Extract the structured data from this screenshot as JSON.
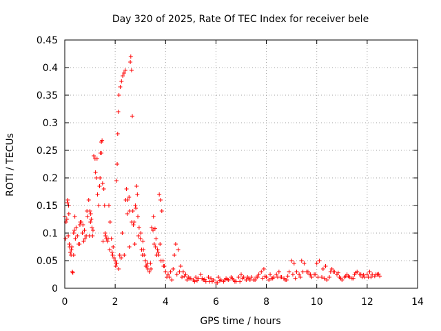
{
  "chart_data": {
    "type": "scatter",
    "title": "Day 320 of 2025, Rate Of TEC Index for receiver bele",
    "xlabel": "GPS time / hours",
    "ylabel": "ROTI / TECUs",
    "xlim": [
      0,
      14
    ],
    "ylim": [
      0,
      0.45
    ],
    "xticks": [
      0,
      2,
      4,
      6,
      8,
      10,
      12,
      14
    ],
    "xtick_labels": [
      "0",
      "2",
      "4",
      "6",
      "8",
      "10",
      "12",
      "14"
    ],
    "yticks": [
      0,
      0.05,
      0.1,
      0.15,
      0.2,
      0.25,
      0.3,
      0.35,
      0.4,
      0.45
    ],
    "ytick_labels": [
      "0",
      "0.05",
      "0.1",
      "0.15",
      "0.2",
      "0.25",
      "0.3",
      "0.35",
      "0.4",
      "0.45"
    ],
    "grid": true,
    "marker": "+",
    "color": "#ff0000",
    "series": [
      {
        "name": "ROTI",
        "x": [
          0.0,
          0.05,
          0.1,
          0.12,
          0.15,
          0.18,
          0.2,
          0.22,
          0.25,
          0.28,
          0.3,
          0.32,
          0.35,
          0.38,
          0.4,
          0.45,
          0.5,
          0.55,
          0.6,
          0.65,
          0.7,
          0.75,
          0.8,
          0.85,
          0.9,
          0.95,
          1.0,
          1.03,
          1.05,
          1.08,
          1.1,
          1.15,
          1.2,
          1.25,
          1.3,
          1.35,
          1.4,
          1.42,
          1.45,
          1.48,
          1.5,
          1.55,
          1.6,
          1.65,
          1.7,
          1.75,
          1.8,
          1.85,
          1.9,
          1.95,
          2.0,
          2.02,
          2.05,
          2.08,
          2.1,
          2.12,
          2.15,
          2.2,
          2.25,
          2.3,
          2.35,
          2.4,
          2.45,
          2.5,
          2.55,
          2.6,
          2.62,
          2.65,
          2.68,
          2.7,
          2.75,
          2.8,
          2.85,
          2.9,
          2.95,
          3.0,
          3.05,
          3.1,
          3.15,
          3.2,
          3.25,
          3.3,
          3.35,
          3.4,
          3.45,
          3.5,
          3.55,
          3.6,
          3.65,
          3.7,
          3.75,
          3.8,
          3.85,
          3.9,
          3.95,
          4.0,
          4.1,
          4.2,
          4.3,
          4.4,
          4.5,
          4.6,
          4.7,
          4.8,
          4.9,
          5.0,
          5.1,
          5.2,
          5.3,
          5.4,
          5.5,
          5.6,
          5.7,
          5.8,
          5.9,
          6.0,
          6.1,
          6.2,
          6.3,
          6.4,
          6.5,
          6.6,
          6.7,
          6.8,
          6.9,
          7.0,
          7.1,
          7.2,
          7.3,
          7.4,
          7.5,
          7.6,
          7.7,
          7.8,
          7.9,
          8.0,
          8.1,
          8.2,
          8.3,
          8.4,
          8.5,
          8.6,
          8.7,
          8.8,
          8.9,
          9.0,
          9.1,
          9.2,
          9.3,
          9.4,
          9.5,
          9.6,
          9.7,
          9.8,
          9.9,
          10.0,
          10.1,
          10.2,
          10.3,
          10.4,
          10.5,
          10.6,
          10.7,
          10.8,
          10.9,
          11.0,
          11.1,
          11.2,
          11.3,
          11.4,
          11.5,
          11.6,
          11.7,
          11.8,
          11.9,
          12.0,
          12.1,
          12.2,
          12.3,
          12.4,
          12.5,
          0.08,
          0.14,
          0.2,
          0.35,
          0.45,
          0.62,
          0.72,
          0.88,
          0.98,
          1.12,
          1.22,
          1.38,
          1.52,
          1.62,
          1.78,
          1.88,
          2.06,
          2.18,
          2.28,
          2.42,
          2.58,
          2.72,
          2.82,
          2.92,
          3.08,
          3.22,
          3.35,
          3.52,
          3.62,
          3.72,
          3.82,
          4.05,
          4.25,
          4.45,
          4.65,
          4.85,
          5.15,
          5.45,
          5.75,
          6.05,
          6.35,
          6.65,
          6.95,
          7.25,
          7.55,
          7.85,
          8.15,
          8.45,
          8.75,
          9.05,
          9.35,
          9.65,
          9.95,
          10.25,
          10.55,
          10.85,
          11.15,
          11.45,
          11.75,
          12.05,
          12.35,
          0.03,
          0.16,
          0.26,
          0.42,
          0.58,
          0.78,
          1.02,
          1.28,
          1.45,
          1.58,
          1.72,
          1.92,
          2.04,
          2.14,
          2.24,
          2.36,
          2.48,
          2.56,
          2.66,
          2.78,
          2.88,
          3.02,
          3.12,
          3.28,
          3.42,
          3.58,
          3.68,
          3.78,
          3.92,
          4.15,
          4.35,
          4.55,
          4.75,
          4.95,
          5.25,
          5.55,
          5.85,
          6.15,
          6.45,
          6.75,
          7.05,
          7.35,
          7.65,
          7.95,
          8.25,
          8.55,
          8.85,
          9.15,
          9.45,
          9.75,
          10.05,
          10.35,
          10.65,
          10.95,
          11.25,
          11.55,
          11.85,
          12.15,
          12.45
        ],
        "y": [
          0.13,
          0.12,
          0.155,
          0.16,
          0.15,
          0.08,
          0.075,
          0.065,
          0.06,
          0.075,
          0.03,
          0.028,
          0.1,
          0.105,
          0.13,
          0.11,
          0.095,
          0.08,
          0.115,
          0.12,
          0.1,
          0.085,
          0.09,
          0.095,
          0.13,
          0.16,
          0.14,
          0.135,
          0.125,
          0.11,
          0.095,
          0.24,
          0.235,
          0.2,
          0.17,
          0.15,
          0.2,
          0.245,
          0.265,
          0.268,
          0.19,
          0.18,
          0.1,
          0.09,
          0.085,
          0.15,
          0.12,
          0.09,
          0.06,
          0.055,
          0.05,
          0.04,
          0.195,
          0.225,
          0.28,
          0.32,
          0.35,
          0.365,
          0.375,
          0.385,
          0.39,
          0.395,
          0.18,
          0.16,
          0.165,
          0.41,
          0.42,
          0.395,
          0.312,
          0.14,
          0.12,
          0.15,
          0.185,
          0.13,
          0.11,
          0.09,
          0.07,
          0.085,
          0.06,
          0.05,
          0.04,
          0.035,
          0.03,
          0.045,
          0.11,
          0.105,
          0.08,
          0.075,
          0.06,
          0.065,
          0.17,
          0.16,
          0.14,
          0.05,
          0.04,
          0.03,
          0.025,
          0.03,
          0.035,
          0.08,
          0.07,
          0.04,
          0.03,
          0.025,
          0.02,
          0.018,
          0.015,
          0.02,
          0.018,
          0.025,
          0.015,
          0.012,
          0.02,
          0.018,
          0.015,
          0.01,
          0.02,
          0.015,
          0.012,
          0.018,
          0.015,
          0.02,
          0.015,
          0.012,
          0.02,
          0.025,
          0.02,
          0.015,
          0.018,
          0.02,
          0.015,
          0.02,
          0.025,
          0.03,
          0.035,
          0.02,
          0.015,
          0.018,
          0.02,
          0.025,
          0.03,
          0.02,
          0.018,
          0.015,
          0.03,
          0.05,
          0.045,
          0.03,
          0.025,
          0.05,
          0.045,
          0.03,
          0.025,
          0.02,
          0.025,
          0.045,
          0.05,
          0.02,
          0.018,
          0.015,
          0.02,
          0.035,
          0.03,
          0.025,
          0.02,
          0.015,
          0.02,
          0.025,
          0.02,
          0.018,
          0.025,
          0.03,
          0.025,
          0.02,
          0.02,
          0.025,
          0.03,
          0.025,
          0.022,
          0.025,
          0.022,
          0.125,
          0.095,
          0.075,
          0.06,
          0.11,
          0.12,
          0.115,
          0.14,
          0.095,
          0.105,
          0.21,
          0.185,
          0.085,
          0.095,
          0.07,
          0.065,
          0.045,
          0.06,
          0.1,
          0.16,
          0.14,
          0.115,
          0.145,
          0.095,
          0.06,
          0.04,
          0.03,
          0.13,
          0.09,
          0.06,
          0.05,
          0.02,
          0.015,
          0.025,
          0.02,
          0.015,
          0.012,
          0.018,
          0.012,
          0.01,
          0.015,
          0.018,
          0.012,
          0.02,
          0.015,
          0.018,
          0.025,
          0.02,
          0.015,
          0.025,
          0.02,
          0.03,
          0.025,
          0.035,
          0.03,
          0.028,
          0.022,
          0.018,
          0.025,
          0.02,
          0.025,
          0.09,
          0.135,
          0.07,
          0.09,
          0.08,
          0.105,
          0.12,
          0.235,
          0.245,
          0.15,
          0.09,
          0.075,
          0.045,
          0.035,
          0.055,
          0.06,
          0.135,
          0.075,
          0.12,
          0.08,
          0.17,
          0.1,
          0.07,
          0.045,
          0.035,
          0.108,
          0.07,
          0.08,
          0.04,
          0.02,
          0.06,
          0.03,
          0.022,
          0.018,
          0.014,
          0.016,
          0.012,
          0.014,
          0.016,
          0.012,
          0.018,
          0.015,
          0.02,
          0.022,
          0.018,
          0.02,
          0.022,
          0.018,
          0.03,
          0.025,
          0.02,
          0.04,
          0.03,
          0.018,
          0.022,
          0.028,
          0.024,
          0.02,
          0.026
        ]
      }
    ]
  }
}
